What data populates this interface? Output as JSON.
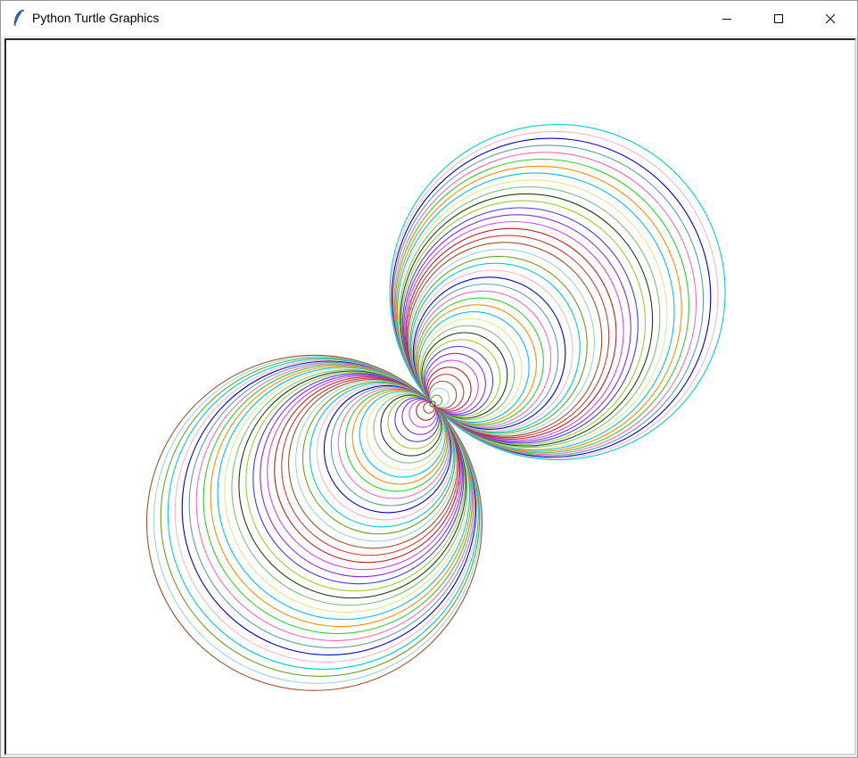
{
  "window": {
    "title": "Python Turtle Graphics",
    "icon": "feather-icon",
    "controls": {
      "minimize": "minimize-icon",
      "maximize": "maximize-icon",
      "close": "close-icon"
    }
  },
  "drawing": {
    "palette": [
      "#6aa121",
      "#9ad3e6",
      "#a0522d",
      "#d2383b",
      "#b22222",
      "#c74aff",
      "#8a2be2",
      "#3b3bff",
      "#9acd32",
      "#1f3f10",
      "#7fbf7f",
      "#e6e68c",
      "#00bfff",
      "#ff8c00",
      "#32cd32",
      "#ff69b4",
      "#5f9ea0",
      "#0000cd",
      "#ffb6c1",
      "#00ced1"
    ],
    "background": "#ffffff",
    "circle_count": 40
  }
}
